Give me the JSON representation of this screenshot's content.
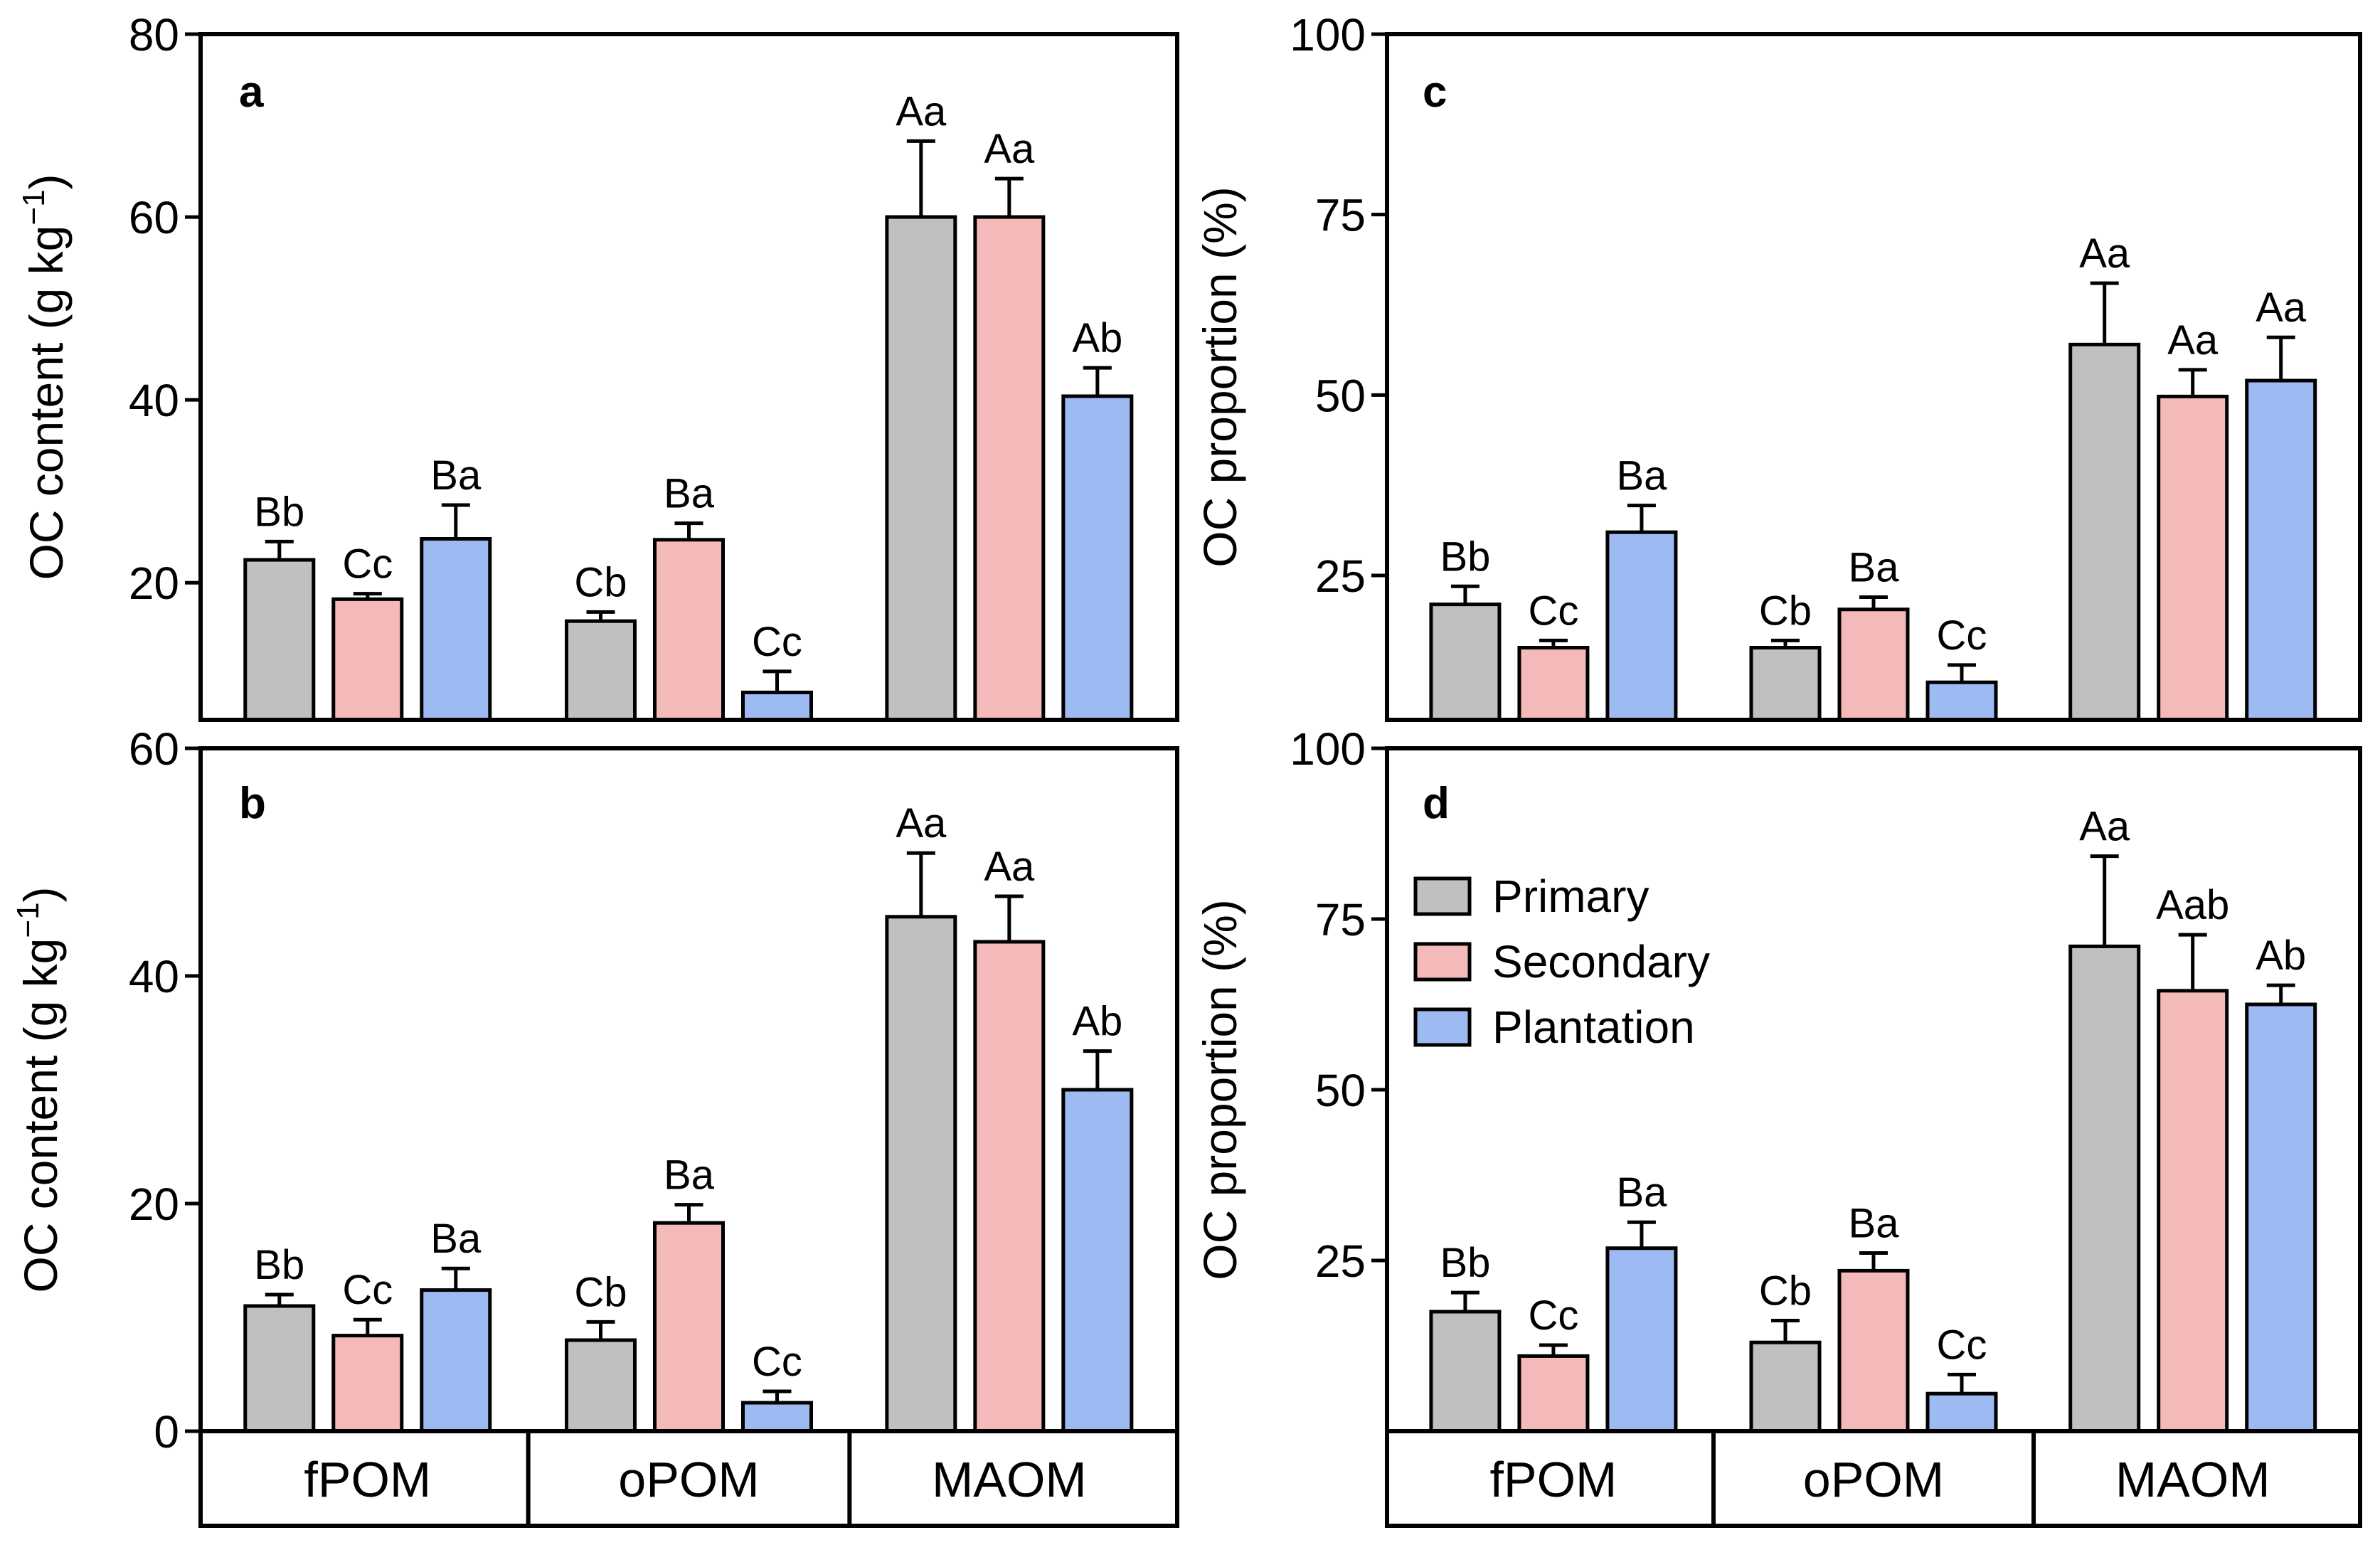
{
  "colors": {
    "Primary": "#c0c0c0",
    "Secondary": "#f4b9b9",
    "Plantation": "#9ebaf2",
    "border": "#000000"
  },
  "legend": {
    "items": [
      "Primary",
      "Secondary",
      "Plantation"
    ]
  },
  "categories": [
    "fPOM",
    "oPOM",
    "MAOM"
  ],
  "chart_data": [
    {
      "panel": "a",
      "type": "bar",
      "ylabel": "OC content (g kg",
      "ylabel_sup": "−1",
      "ylabel_close": ")",
      "ylim": [
        5,
        80
      ],
      "yticks": [
        20,
        40,
        60,
        80
      ],
      "categories": [
        "fPOM",
        "oPOM",
        "MAOM"
      ],
      "series": [
        {
          "name": "Primary",
          "values": [
            22.5,
            15.8,
            60.0
          ],
          "errors": [
            2.0,
            1.0,
            8.3
          ],
          "labels": [
            "Bb",
            "Cb",
            "Aa"
          ]
        },
        {
          "name": "Secondary",
          "values": [
            18.2,
            24.7,
            60.0
          ],
          "errors": [
            0.6,
            1.8,
            4.2
          ],
          "labels": [
            "Cc",
            "Ba",
            "Aa"
          ]
        },
        {
          "name": "Plantation",
          "values": [
            24.8,
            8.0,
            40.4
          ],
          "errors": [
            3.7,
            2.3,
            3.1
          ],
          "labels": [
            "Ba",
            "Cc",
            "Ab"
          ]
        }
      ]
    },
    {
      "panel": "b",
      "type": "bar",
      "ylabel": "OC content (g kg",
      "ylabel_sup": "−1",
      "ylabel_close": ")",
      "ylim": [
        0,
        60
      ],
      "yticks": [
        0,
        20,
        40,
        60
      ],
      "categories": [
        "fPOM",
        "oPOM",
        "MAOM"
      ],
      "series": [
        {
          "name": "Primary",
          "values": [
            11.0,
            8.0,
            45.2
          ],
          "errors": [
            1.0,
            1.6,
            5.6
          ],
          "labels": [
            "Bb",
            "Cb",
            "Aa"
          ]
        },
        {
          "name": "Secondary",
          "values": [
            8.4,
            18.3,
            43.0
          ],
          "errors": [
            1.4,
            1.6,
            4.0
          ],
          "labels": [
            "Cc",
            "Ba",
            "Aa"
          ]
        },
        {
          "name": "Plantation",
          "values": [
            12.4,
            2.5,
            30.0
          ],
          "errors": [
            1.9,
            1.0,
            3.4
          ],
          "labels": [
            "Ba",
            "Cc",
            "Ab"
          ]
        }
      ]
    },
    {
      "panel": "c",
      "type": "bar",
      "ylabel": "OC proportion (%)",
      "ylim": [
        5,
        100
      ],
      "yticks": [
        25,
        50,
        75,
        100
      ],
      "categories": [
        "fPOM",
        "oPOM",
        "MAOM"
      ],
      "series": [
        {
          "name": "Primary",
          "values": [
            21.0,
            15.0,
            57.0
          ],
          "errors": [
            2.5,
            1.0,
            8.5
          ],
          "labels": [
            "Bb",
            "Cb",
            "Aa"
          ]
        },
        {
          "name": "Secondary",
          "values": [
            15.0,
            20.3,
            49.8
          ],
          "errors": [
            1.0,
            1.7,
            3.7
          ],
          "labels": [
            "Cc",
            "Ba",
            "Aa"
          ]
        },
        {
          "name": "Plantation",
          "values": [
            31.0,
            10.2,
            52.0
          ],
          "errors": [
            3.7,
            2.4,
            6.0
          ],
          "labels": [
            "Ba",
            "Cc",
            "Aa"
          ]
        }
      ]
    },
    {
      "panel": "d",
      "type": "bar",
      "ylabel": "OC proportion (%)",
      "ylim": [
        0,
        100
      ],
      "yticks": [
        25,
        50,
        75,
        100
      ],
      "categories": [
        "fPOM",
        "oPOM",
        "MAOM"
      ],
      "series": [
        {
          "name": "Primary",
          "values": [
            17.5,
            13.0,
            71.0
          ],
          "errors": [
            2.8,
            3.2,
            13.2
          ],
          "labels": [
            "Bb",
            "Cb",
            "Aa"
          ]
        },
        {
          "name": "Secondary",
          "values": [
            11.0,
            23.5,
            64.5
          ],
          "errors": [
            1.6,
            2.6,
            8.2
          ],
          "labels": [
            "Cc",
            "Ba",
            "Aab"
          ]
        },
        {
          "name": "Plantation",
          "values": [
            26.8,
            5.5,
            62.5
          ],
          "errors": [
            3.8,
            2.8,
            2.8
          ],
          "labels": [
            "Ba",
            "Cc",
            "Ab"
          ]
        }
      ]
    }
  ]
}
